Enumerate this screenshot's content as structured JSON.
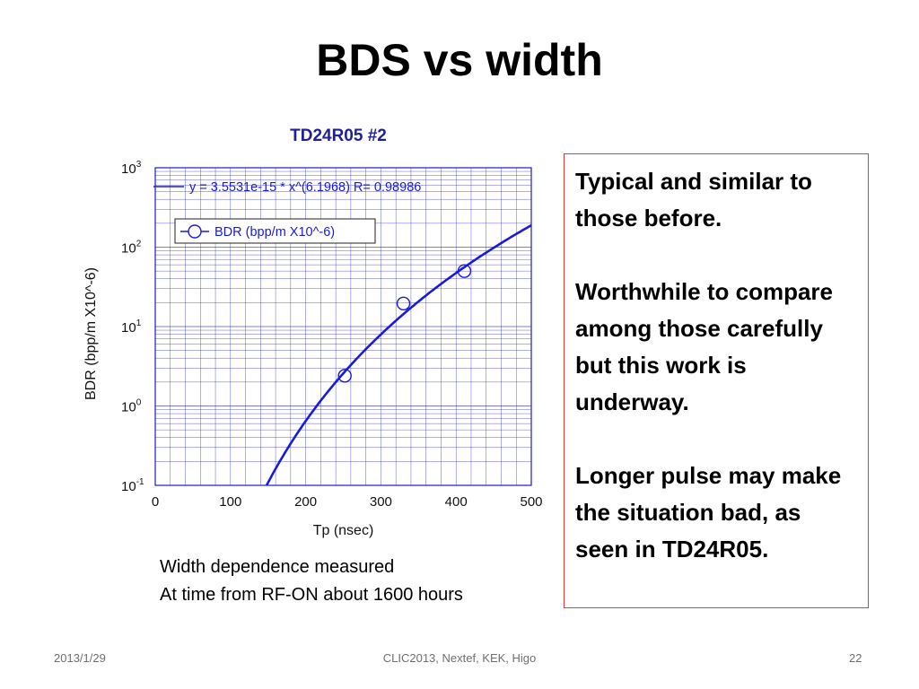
{
  "slide": {
    "title": "BDS vs width",
    "caption_lines": [
      "Width dependence measured",
      "At time from RF-ON about 1600 hours"
    ],
    "notes": [
      "Typical and similar to those before.",
      "Worthwhile to compare among those carefully but this work is underway.",
      "Longer pulse may make the situation bad, as seen in TD24R05."
    ],
    "note_border_color": "#e8383b",
    "footer": {
      "date": "2013/1/29",
      "center": "CLIC2013, Nextef, KEK,  Higo",
      "page": "22"
    }
  },
  "chart_data": {
    "type": "scatter",
    "title": "TD24R05 #2",
    "xlabel": "Tp (nsec)",
    "ylabel": "BDR (bpp/m X10^-6)",
    "xlim": [
      0,
      500
    ],
    "ylim": [
      0.1,
      1000
    ],
    "y_scale": "log",
    "x_ticks": [
      "0",
      "100",
      "200",
      "300",
      "400",
      "500"
    ],
    "y_ticks": [
      {
        "value": 0.1,
        "base": "10",
        "exp": "-1"
      },
      {
        "value": 1,
        "base": "10",
        "exp": "0"
      },
      {
        "value": 10,
        "base": "10",
        "exp": "1"
      },
      {
        "value": 100,
        "base": "10",
        "exp": "2"
      },
      {
        "value": 1000,
        "base": "10",
        "exp": "3"
      }
    ],
    "grid": true,
    "legend_position": "top-left",
    "series": [
      {
        "name": "BDR (bpp/m X10^-6)",
        "marker": "open-circle",
        "x": [
          252,
          330,
          411
        ],
        "y": [
          2.4,
          19.5,
          50
        ]
      }
    ],
    "fit": {
      "label": "y = 3.5531e-15 * x^(6.1968)   R= 0.98986",
      "a": 3.5531e-15,
      "b": 6.1968,
      "R": 0.98986
    },
    "colors": {
      "series": "#1a1adc",
      "title": "#20209a",
      "grid": "#2a2ad0",
      "frame": "#1a1ad0",
      "axis_text": "#111111"
    }
  }
}
